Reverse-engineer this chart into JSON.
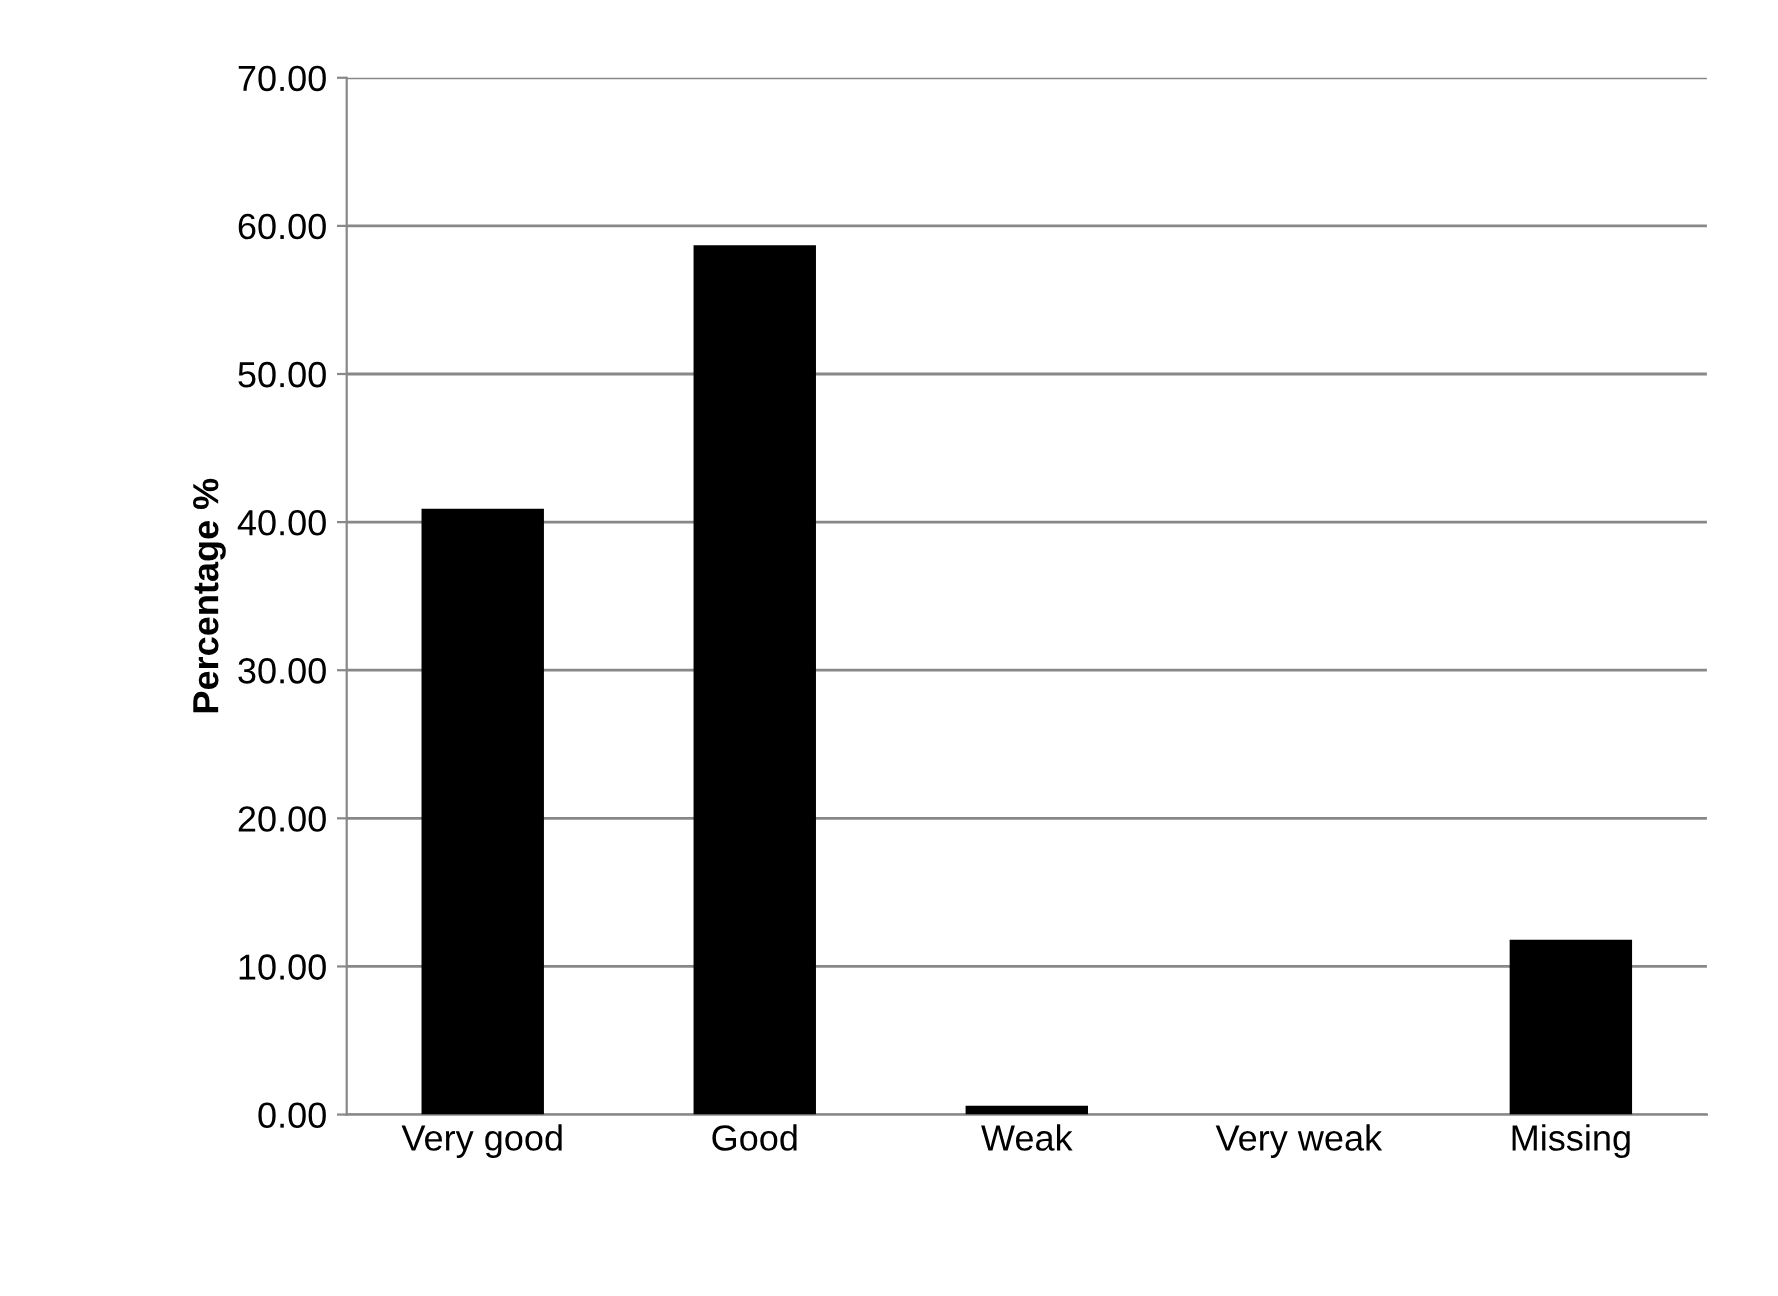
{
  "chart_data": {
    "type": "bar",
    "ylabel": "Percentage %",
    "categories": [
      "Very good",
      "Good",
      "Weak",
      "Very weak",
      "Missing"
    ],
    "values": [
      40.9,
      58.7,
      0.6,
      0,
      11.8
    ],
    "color": "#000000",
    "ylim": [
      0,
      70
    ],
    "yticks": [
      {
        "value": 0,
        "label": "0.00"
      },
      {
        "value": 10,
        "label": "10.00"
      },
      {
        "value": 20,
        "label": "20.00"
      },
      {
        "value": 30,
        "label": "30.00"
      },
      {
        "value": 40,
        "label": "40.00"
      },
      {
        "value": 50,
        "label": "50.00"
      },
      {
        "value": 60,
        "label": "60.00"
      },
      {
        "value": 70,
        "label": "70.00"
      }
    ],
    "grid": "y"
  }
}
